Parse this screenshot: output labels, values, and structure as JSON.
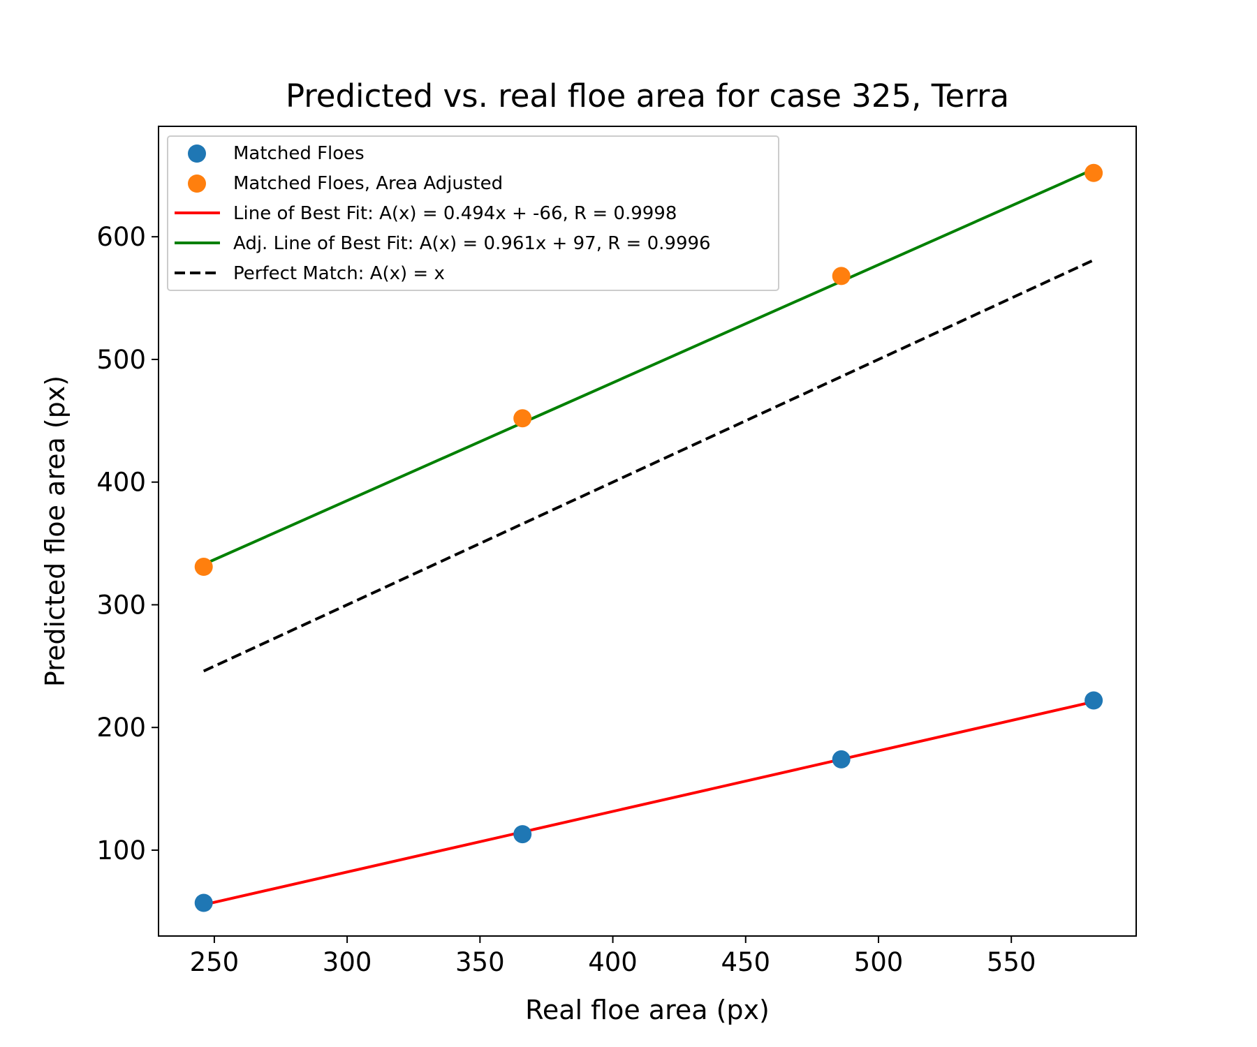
{
  "chart_data": {
    "type": "scatter",
    "title": "Predicted vs. real floe area  for case 325, Terra",
    "xlabel": "Real floe area (px)",
    "ylabel": "Predicted floe area (px)",
    "xlim": [
      229,
      597
    ],
    "ylim": [
      30,
      690
    ],
    "xticks": [
      250,
      300,
      350,
      400,
      450,
      500,
      550
    ],
    "yticks": [
      100,
      200,
      300,
      400,
      500,
      600
    ],
    "legend_position": "upper-left",
    "series": [
      {
        "name": "Matched Floes",
        "kind": "scatter",
        "color": "#1f77b4",
        "x": [
          246,
          366,
          486,
          581
        ],
        "y": [
          57,
          113,
          174,
          222
        ]
      },
      {
        "name": "Matched Floes, Area Adjusted",
        "kind": "scatter",
        "color": "#ff7f0e",
        "x": [
          246,
          366,
          486,
          581
        ],
        "y": [
          331,
          452,
          568,
          652
        ]
      },
      {
        "name": "Line of Best Fit: A(x) = 0.494x + -66, R = 0.9998",
        "kind": "line",
        "color": "#ff0000",
        "dash": false,
        "x": [
          246,
          581
        ],
        "y": [
          55.5,
          221
        ]
      },
      {
        "name": "Adj. Line of Best Fit: A(x) = 0.961x + 97, R = 0.9996",
        "kind": "line",
        "color": "#008000",
        "dash": false,
        "x": [
          246,
          581
        ],
        "y": [
          333,
          655
        ]
      },
      {
        "name": "Perfect Match: A(x) = x",
        "kind": "line",
        "color": "#000000",
        "dash": true,
        "x": [
          246,
          581
        ],
        "y": [
          246,
          581
        ]
      }
    ]
  }
}
